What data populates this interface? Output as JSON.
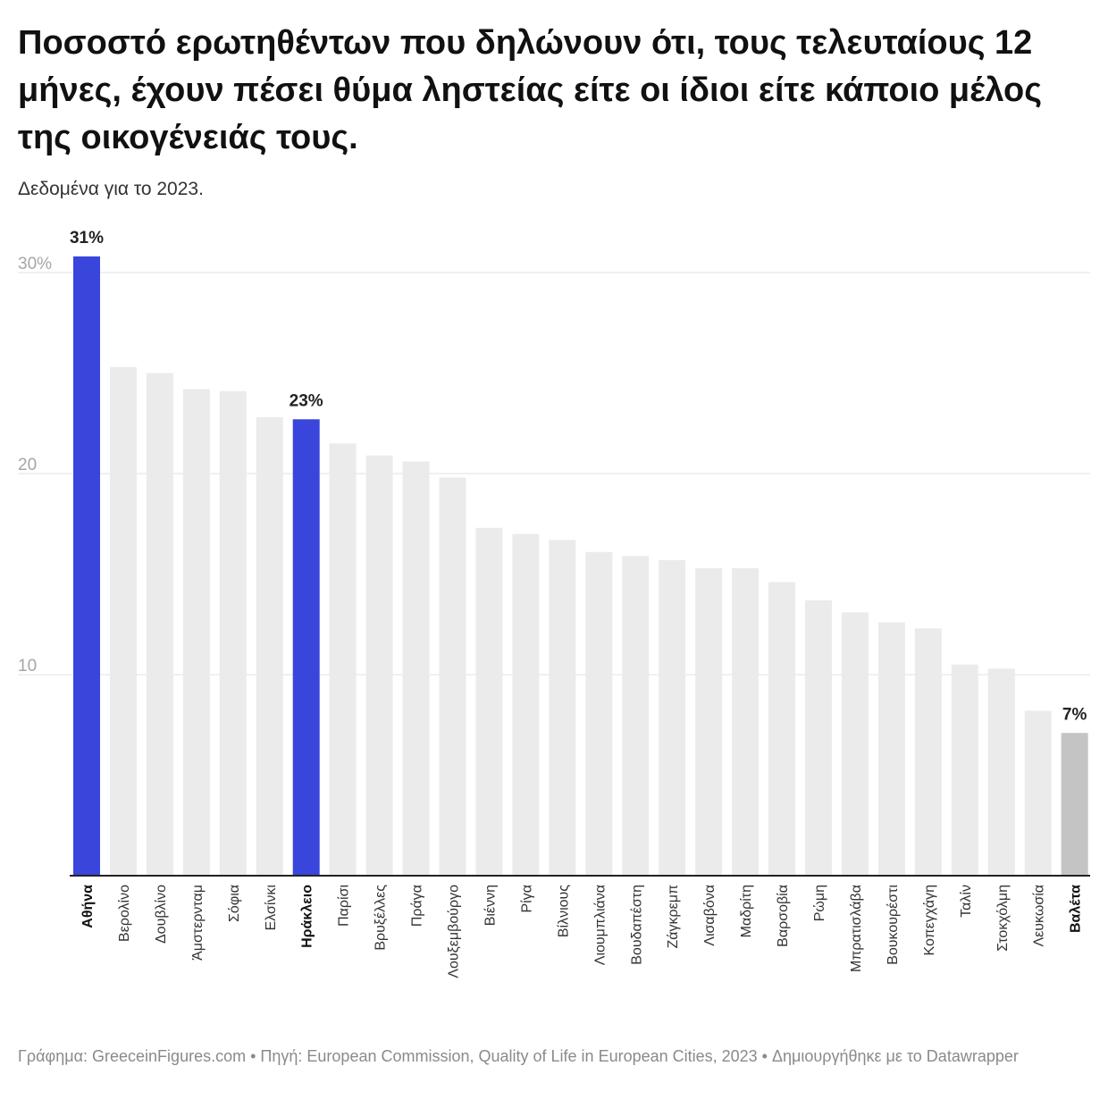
{
  "header": {
    "title": "Ποσοστό ερωτηθέντων που δηλώνουν ότι, τους τελευταίους 12 μήνες, έχουν πέσει θύμα ληστείας είτε οι ίδιοι είτε κάποιο μέλος της οικογένειάς τους.",
    "subtitle": "Δεδομένα για το 2023."
  },
  "footer": {
    "credit": "Γράφημα: GreeceinFigures.com • Πηγή: European Commission, Quality of Life in European Cities, 2023 • Δημιουργήθηκε με το Datawrapper"
  },
  "colors": {
    "highlight": "#3a45dc",
    "muted_highlight": "#c4c4c4",
    "default_bar": "#ebebeb",
    "grid": "#e0e0e0",
    "tick_label": "#a6a6a6",
    "axis": "#222222"
  },
  "chart_data": {
    "type": "bar",
    "title": "Ποσοστό ερωτηθέντων που δηλώνουν ότι, τους τελευταίους 12 μήνες, έχουν πέσει θύμα ληστείας είτε οι ίδιοι είτε κάποιο μέλος της οικογένειάς τους.",
    "subtitle": "Δεδομένα για το 2023.",
    "xlabel": "",
    "ylabel": "",
    "ylim": [
      0,
      31
    ],
    "yticks": [
      10,
      20,
      30
    ],
    "ytick_labels": [
      "10",
      "20",
      "30%"
    ],
    "grid": true,
    "legend": "none",
    "categories": [
      "Αθήνα",
      "Βερολίνο",
      "Δουβλίνο",
      "Άμστερνταμ",
      "Σόφια",
      "Ελσίνκι",
      "Ηράκλειο",
      "Παρίσι",
      "Βρυξέλλες",
      "Πράγα",
      "Λουξεμβούργο",
      "Βιέννη",
      "Ρίγα",
      "Βίλνιους",
      "Λιουμπλιάνα",
      "Βουδαπέστη",
      "Ζάγκρεμπ",
      "Λισαβόνα",
      "Μαδρίτη",
      "Βαρσοβία",
      "Ρώμη",
      "Μπρατισλάβα",
      "Βουκουρέστι",
      "Κοπεγχάγη",
      "Ταλίν",
      "Στοκχόλμη",
      "Λευκωσία",
      "Βαλέτα"
    ],
    "values": [
      30.8,
      25.3,
      25.0,
      24.2,
      24.1,
      22.8,
      22.7,
      21.5,
      20.9,
      20.6,
      19.8,
      17.3,
      17.0,
      16.7,
      16.1,
      15.9,
      15.7,
      15.3,
      15.3,
      14.6,
      13.7,
      13.1,
      12.6,
      12.3,
      10.5,
      10.3,
      8.2,
      7.1
    ],
    "highlighted": [
      "Αθήνα",
      "Ηράκλειο",
      "Βαλέτα"
    ],
    "data_labels": [
      {
        "category": "Αθήνα",
        "text": "31%"
      },
      {
        "category": "Ηράκλειο",
        "text": "23%"
      },
      {
        "category": "Βαλέτα",
        "text": "7%"
      }
    ]
  }
}
